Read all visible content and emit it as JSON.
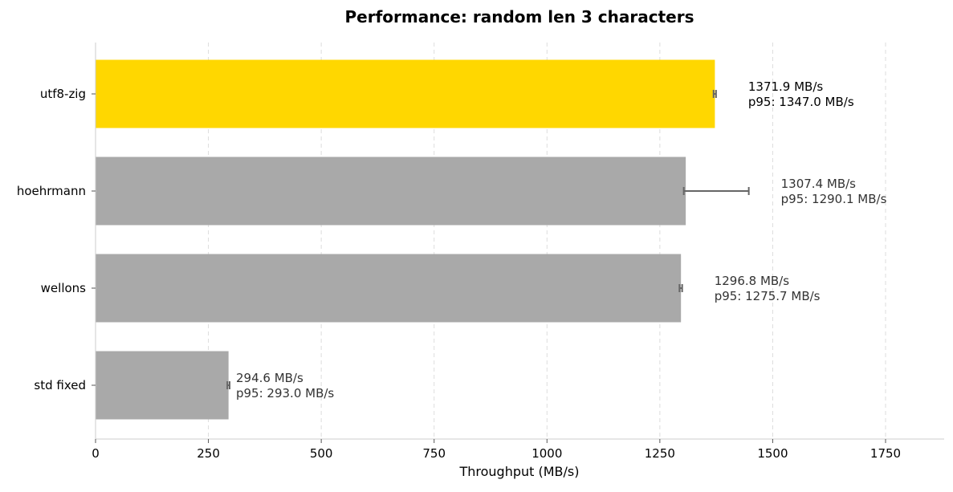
{
  "chart_data": {
    "type": "bar",
    "orientation": "horizontal",
    "title": "Performance: random len 3 characters",
    "xlabel": "Throughput (MB/s)",
    "ylabel": "",
    "xlim": [
      0,
      1880
    ],
    "xticks": [
      0,
      250,
      500,
      750,
      1000,
      1250,
      1500,
      1750
    ],
    "grid": "x-dashed",
    "categories": [
      "utf8-zig",
      "hoehrmann",
      "wellons",
      "std fixed"
    ],
    "values": [
      1371.9,
      1307.4,
      1296.8,
      294.6
    ],
    "error_low": [
      1369.0,
      1303.0,
      1293.5,
      292.0
    ],
    "error_high": [
      1374.5,
      1447.0,
      1299.5,
      297.0
    ],
    "value_labels": [
      "1371.9 MB/s",
      "1307.4 MB/s",
      "1296.8 MB/s",
      "294.6 MB/s"
    ],
    "p95_labels": [
      "p95: 1347.0 MB/s",
      "p95: 1290.1 MB/s",
      "p95: 1275.7 MB/s",
      "p95: 293.0 MB/s"
    ],
    "colors": [
      "#FFD700",
      "#A9A9A9",
      "#A9A9A9",
      "#A9A9A9"
    ],
    "label_colors": [
      "#000000",
      "#333333",
      "#333333",
      "#333333"
    ],
    "error_color": "#666666",
    "grid_color": "#dddddd",
    "axis_color": "#cccccc"
  }
}
